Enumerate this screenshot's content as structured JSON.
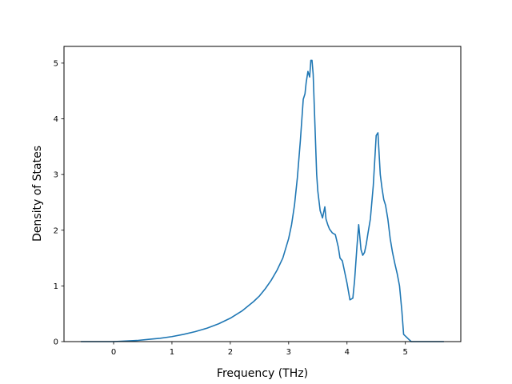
{
  "chart_data": {
    "type": "line",
    "title": "",
    "xlabel": "Frequency (THz)",
    "ylabel": "Density of States",
    "xlim": [
      -0.85,
      5.95
    ],
    "ylim": [
      0,
      5.3
    ],
    "xticks": [
      0,
      1,
      2,
      3,
      4,
      5
    ],
    "yticks": [
      0,
      1,
      2,
      3,
      4,
      5
    ],
    "grid": false,
    "legend": "none",
    "series": [
      {
        "color": "#1f77b4",
        "x": [
          -0.55,
          0.0,
          0.2,
          0.4,
          0.6,
          0.8,
          1.0,
          1.2,
          1.4,
          1.6,
          1.8,
          2.0,
          2.2,
          2.4,
          2.5,
          2.6,
          2.7,
          2.8,
          2.9,
          3.0,
          3.05,
          3.1,
          3.15,
          3.2,
          3.25,
          3.28,
          3.3,
          3.33,
          3.36,
          3.38,
          3.4,
          3.42,
          3.45,
          3.48,
          3.5,
          3.54,
          3.58,
          3.62,
          3.64,
          3.67,
          3.7,
          3.75,
          3.8,
          3.85,
          3.88,
          3.92,
          3.95,
          4.0,
          4.05,
          4.1,
          4.13,
          4.17,
          4.2,
          4.24,
          4.27,
          4.3,
          4.33,
          4.36,
          4.4,
          4.45,
          4.5,
          4.53,
          4.57,
          4.6,
          4.63,
          4.66,
          4.7,
          4.74,
          4.78,
          4.82,
          4.86,
          4.9,
          4.94,
          4.97,
          5.0,
          5.05,
          5.1,
          5.13,
          5.2,
          5.5,
          5.65
        ],
        "y": [
          0.0,
          0.0,
          0.01,
          0.02,
          0.04,
          0.06,
          0.09,
          0.13,
          0.18,
          0.24,
          0.32,
          0.42,
          0.55,
          0.72,
          0.82,
          0.95,
          1.1,
          1.28,
          1.5,
          1.85,
          2.1,
          2.45,
          2.95,
          3.6,
          4.35,
          4.45,
          4.65,
          4.85,
          4.75,
          5.05,
          5.05,
          4.8,
          3.9,
          3.0,
          2.7,
          2.35,
          2.22,
          2.42,
          2.2,
          2.1,
          2.02,
          1.95,
          1.92,
          1.7,
          1.5,
          1.45,
          1.3,
          1.05,
          0.75,
          0.78,
          1.1,
          1.7,
          2.1,
          1.65,
          1.55,
          1.6,
          1.75,
          1.95,
          2.2,
          2.8,
          3.7,
          3.75,
          3.0,
          2.75,
          2.55,
          2.45,
          2.2,
          1.85,
          1.6,
          1.4,
          1.22,
          1.0,
          0.55,
          0.13,
          0.1,
          0.05,
          0.0,
          0.0,
          0.0,
          0.0,
          0.0
        ]
      }
    ]
  }
}
